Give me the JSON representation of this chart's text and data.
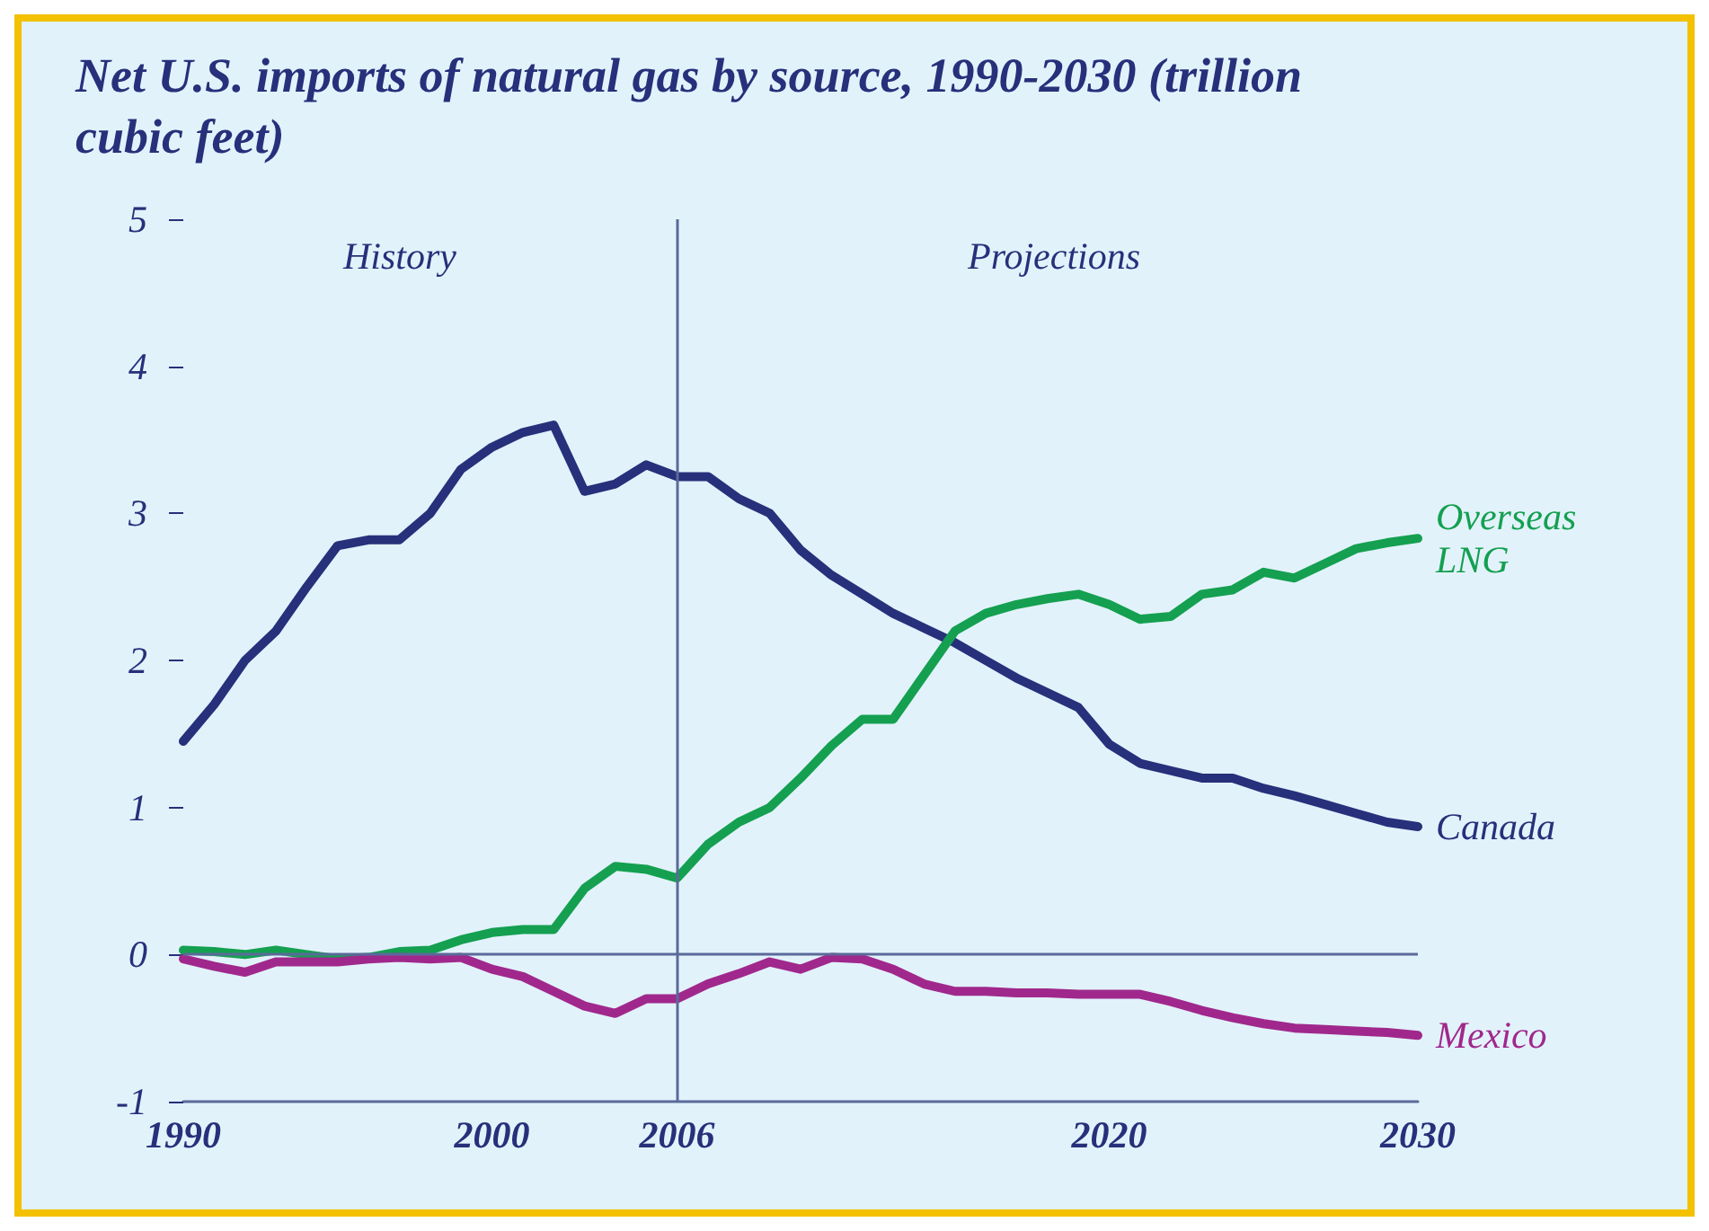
{
  "chart_data": {
    "type": "line",
    "title": "Net U.S. imports of natural gas by source, 1990-2030 (trillion cubic feet)",
    "x": [
      1990,
      1991,
      1992,
      1993,
      1994,
      1995,
      1996,
      1997,
      1998,
      1999,
      2000,
      2001,
      2002,
      2003,
      2004,
      2005,
      2006,
      2007,
      2008,
      2009,
      2010,
      2011,
      2012,
      2013,
      2014,
      2015,
      2016,
      2017,
      2018,
      2019,
      2020,
      2021,
      2022,
      2023,
      2024,
      2025,
      2026,
      2027,
      2028,
      2029,
      2030
    ],
    "series": [
      {
        "name": "Canada",
        "color": "#27307a",
        "values": [
          1.45,
          1.7,
          2.0,
          2.2,
          2.5,
          2.78,
          2.82,
          2.82,
          3.0,
          3.3,
          3.45,
          3.55,
          3.6,
          3.15,
          3.2,
          3.33,
          3.25,
          3.25,
          3.1,
          3.0,
          2.75,
          2.58,
          2.45,
          2.32,
          2.22,
          2.12,
          2.0,
          1.88,
          1.78,
          1.68,
          1.43,
          1.3,
          1.25,
          1.2,
          1.2,
          1.13,
          1.08,
          1.02,
          0.96,
          0.9,
          0.87
        ]
      },
      {
        "name": "Overseas LNG",
        "color": "#14a050",
        "values": [
          0.03,
          0.02,
          0.0,
          0.03,
          0.0,
          -0.03,
          -0.02,
          0.02,
          0.03,
          0.1,
          0.15,
          0.17,
          0.17,
          0.45,
          0.6,
          0.58,
          0.52,
          0.75,
          0.9,
          1.0,
          1.2,
          1.42,
          1.6,
          1.6,
          1.9,
          2.2,
          2.32,
          2.38,
          2.42,
          2.45,
          2.38,
          2.28,
          2.3,
          2.45,
          2.48,
          2.6,
          2.56,
          2.66,
          2.76,
          2.8,
          2.83
        ]
      },
      {
        "name": "Mexico",
        "color": "#a0288c",
        "values": [
          -0.03,
          -0.08,
          -0.12,
          -0.05,
          -0.05,
          -0.05,
          -0.03,
          -0.02,
          -0.03,
          -0.02,
          -0.1,
          -0.15,
          -0.25,
          -0.35,
          -0.4,
          -0.3,
          -0.3,
          -0.2,
          -0.13,
          -0.05,
          -0.1,
          -0.02,
          -0.03,
          -0.1,
          -0.2,
          -0.25,
          -0.25,
          -0.26,
          -0.26,
          -0.27,
          -0.27,
          -0.27,
          -0.32,
          -0.38,
          -0.43,
          -0.47,
          -0.5,
          -0.51,
          -0.52,
          -0.53,
          -0.55
        ]
      }
    ],
    "xlim": [
      1990,
      2030
    ],
    "xticks": [
      1990,
      2000,
      2006,
      2020,
      2030
    ],
    "ylim": [
      -1,
      5
    ],
    "yticks": [
      -1,
      0,
      1,
      2,
      3,
      4,
      5
    ],
    "ref_lines": [
      {
        "axis": "x",
        "value": 2006
      },
      {
        "axis": "y",
        "value": 0
      }
    ],
    "annotations": [
      "History",
      "Projections"
    ],
    "grid": false,
    "legend": false,
    "marker": "none",
    "line_style": "solid"
  }
}
